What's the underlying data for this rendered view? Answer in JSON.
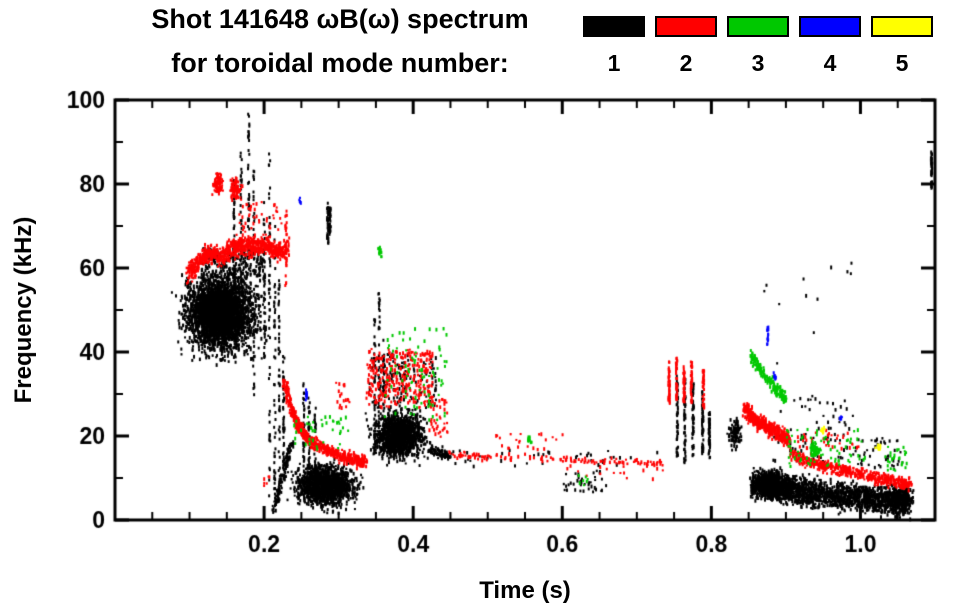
{
  "chart_data": {
    "type": "scatter",
    "title": "Shot 141648 ωB(ω) spectrum",
    "subtitle": "for toroidal mode number:",
    "xlabel": "Time (s)",
    "ylabel": "Frequency (kHz)",
    "xlim": [
      0.0,
      1.1
    ],
    "ylim": [
      0,
      100
    ],
    "xticks": [
      0.2,
      0.4,
      0.6,
      0.8,
      1.0
    ],
    "xtick_labels": [
      "0.2",
      "0.4",
      "0.6",
      "0.8",
      "1.0"
    ],
    "x_minor_step": 0.05,
    "yticks": [
      0,
      20,
      40,
      60,
      80,
      100
    ],
    "y_minor_step": 10,
    "grid": false,
    "legend_position": "top-right",
    "series": [
      {
        "name": "1",
        "color": "#000000",
        "clusters": [
          {
            "type": "box",
            "t": [
              0.075,
              0.205
            ],
            "f": [
              37,
              62
            ],
            "n": 2600,
            "gauss": true
          },
          {
            "type": "box",
            "t": [
              0.09,
              0.185
            ],
            "f": [
              42,
              58
            ],
            "n": 1200,
            "gauss": true
          },
          {
            "type": "box",
            "t": [
              0.115,
              0.2
            ],
            "f": [
              58,
              65
            ],
            "n": 220,
            "gauss": false
          },
          {
            "type": "vlines",
            "lines": [
              [
                0.158,
                60,
                82
              ],
              [
                0.168,
                56,
                88
              ],
              [
                0.178,
                60,
                97
              ],
              [
                0.185,
                30,
                84
              ],
              [
                0.199,
                38,
                78
              ]
            ],
            "n": 40
          },
          {
            "type": "vlines",
            "lines": [
              [
                0.206,
                6,
                88
              ],
              [
                0.213,
                4,
                72
              ],
              [
                0.219,
                4,
                58
              ],
              [
                0.225,
                10,
                40
              ]
            ],
            "n": 50
          },
          {
            "type": "path",
            "pts": [
              [
                0.212,
                3
              ],
              [
                0.236,
                19
              ]
            ],
            "jf": 1.2,
            "jt": 0.003,
            "n": 120
          },
          {
            "type": "box",
            "t": [
              0.225,
              0.335
            ],
            "f": [
              2,
              15
            ],
            "n": 1500,
            "gauss": true
          },
          {
            "type": "vlines",
            "lines": [
              [
                0.252,
                13,
                33
              ],
              [
                0.259,
                11,
                30
              ],
              [
                0.267,
                9,
                27
              ]
            ],
            "n": 30
          },
          {
            "type": "vlines",
            "lines": [
              [
                0.284,
                66,
                76
              ],
              [
                0.287,
                68,
                75
              ]
            ],
            "n": 35
          },
          {
            "type": "box",
            "t": [
              0.335,
              0.425
            ],
            "f": [
              13,
              28
            ],
            "n": 1400,
            "gauss": true
          },
          {
            "type": "box",
            "t": [
              0.34,
              0.43
            ],
            "f": [
              27,
              40
            ],
            "n": 150,
            "gauss": false
          },
          {
            "type": "vlines",
            "lines": [
              [
                0.347,
                16,
                50
              ],
              [
                0.353,
                20,
                55
              ],
              [
                0.359,
                18,
                44
              ]
            ],
            "n": 38
          },
          {
            "type": "path",
            "pts": [
              [
                0.42,
                17
              ],
              [
                0.448,
                15.5
              ]
            ],
            "jf": 1.2,
            "jt": 0.003,
            "n": 80
          },
          {
            "type": "box",
            "t": [
              0.448,
              0.73
            ],
            "f": [
              13,
              17
            ],
            "n": 40,
            "gauss": false
          },
          {
            "type": "box",
            "t": [
              0.6,
              0.66
            ],
            "f": [
              7,
              12
            ],
            "n": 40,
            "gauss": false
          },
          {
            "type": "vlines",
            "lines": [
              [
                0.753,
                15,
                35
              ],
              [
                0.763,
                14,
                34
              ],
              [
                0.774,
                15,
                33
              ],
              [
                0.787,
                16,
                31
              ],
              [
                0.796,
                15,
                26
              ]
            ],
            "n": 55
          },
          {
            "type": "box",
            "t": [
              0.818,
              0.845
            ],
            "f": [
              16,
              26
            ],
            "n": 100,
            "gauss": true
          },
          {
            "type": "path",
            "pts": [
              [
                0.855,
                9
              ],
              [
                0.88,
                8.5
              ],
              [
                0.91,
                7.5
              ],
              [
                0.95,
                6.5
              ],
              [
                1.0,
                5.5
              ],
              [
                1.04,
                5
              ],
              [
                1.065,
                5
              ]
            ],
            "jf": 3.2,
            "jt": 0.006,
            "n": 2400
          },
          {
            "type": "box",
            "t": [
              0.858,
              0.905
            ],
            "f": [
              4,
              13
            ],
            "n": 450,
            "gauss": true
          },
          {
            "type": "box",
            "t": [
              0.88,
              0.99
            ],
            "f": [
              14,
              30
            ],
            "n": 80,
            "gauss": false
          },
          {
            "type": "box",
            "t": [
              0.99,
              1.06
            ],
            "f": [
              12,
              20
            ],
            "n": 45,
            "gauss": false
          },
          {
            "type": "vlines",
            "lines": [
              [
                1.094,
                79,
                88
              ]
            ],
            "n": 40
          },
          {
            "type": "box",
            "t": [
              0.86,
              1.0
            ],
            "f": [
              32,
              62
            ],
            "n": 12,
            "gauss": false
          }
        ]
      },
      {
        "name": "2",
        "color": "#ff0000",
        "clusters": [
          {
            "type": "path",
            "pts": [
              [
                0.097,
                59
              ],
              [
                0.112,
                62
              ],
              [
                0.127,
                64
              ],
              [
                0.142,
                63
              ],
              [
                0.157,
                65
              ],
              [
                0.172,
                66
              ],
              [
                0.187,
                65
              ],
              [
                0.202,
                66
              ],
              [
                0.217,
                64
              ],
              [
                0.23,
                65
              ]
            ],
            "jf": 2.2,
            "jt": 0.004,
            "n": 800
          },
          {
            "type": "box",
            "t": [
              0.127,
              0.147
            ],
            "f": [
              77,
              84
            ],
            "n": 85,
            "gauss": true
          },
          {
            "type": "box",
            "t": [
              0.151,
              0.17
            ],
            "f": [
              75,
              83
            ],
            "n": 85,
            "gauss": true
          },
          {
            "type": "box",
            "t": [
              0.165,
              0.225
            ],
            "f": [
              68,
              76
            ],
            "n": 45,
            "gauss": false
          },
          {
            "type": "vlines",
            "lines": [
              [
                0.228,
                55,
                74
              ]
            ],
            "n": 30
          },
          {
            "type": "path",
            "pts": [
              [
                0.226,
                33
              ],
              [
                0.236,
                26.5
              ],
              [
                0.247,
                22
              ],
              [
                0.262,
                19
              ],
              [
                0.282,
                17
              ],
              [
                0.302,
                15.5
              ],
              [
                0.322,
                14.5
              ],
              [
                0.334,
                14.2
              ]
            ],
            "jf": 1.4,
            "jt": 0.003,
            "n": 600
          },
          {
            "type": "box",
            "t": [
              0.336,
              0.425
            ],
            "f": [
              27,
              41
            ],
            "n": 320,
            "gauss": false
          },
          {
            "type": "box",
            "t": [
              0.42,
              0.445
            ],
            "f": [
              20,
              30
            ],
            "n": 45,
            "gauss": false
          },
          {
            "type": "path",
            "pts": [
              [
                0.445,
                16
              ],
              [
                0.5,
                15.2
              ],
              [
                0.56,
                15
              ],
              [
                0.62,
                14.5
              ],
              [
                0.68,
                14.2
              ],
              [
                0.735,
                14
              ]
            ],
            "jf": 0.9,
            "jt": 0.004,
            "n": 130
          },
          {
            "type": "box",
            "t": [
              0.5,
              0.6
            ],
            "f": [
              17,
              21
            ],
            "n": 22,
            "gauss": false
          },
          {
            "type": "vlines",
            "lines": [
              [
                0.742,
                28,
                38
              ],
              [
                0.752,
                29,
                39
              ],
              [
                0.762,
                28,
                37
              ],
              [
                0.772,
                28,
                38
              ],
              [
                0.788,
                27,
                36
              ]
            ],
            "n": 42
          },
          {
            "type": "path",
            "pts": [
              [
                0.843,
                27
              ],
              [
                0.853,
                25
              ],
              [
                0.863,
                23.5
              ],
              [
                0.873,
                22.5
              ],
              [
                0.883,
                21.5
              ],
              [
                0.893,
                20.5
              ],
              [
                0.903,
                19.5
              ]
            ],
            "jf": 1.8,
            "jt": 0.003,
            "n": 450
          },
          {
            "type": "path",
            "pts": [
              [
                0.905,
                16
              ],
              [
                0.93,
                14.2
              ],
              [
                0.955,
                13
              ],
              [
                0.98,
                12
              ],
              [
                1.005,
                11
              ],
              [
                1.03,
                10
              ],
              [
                1.05,
                9.2
              ],
              [
                1.065,
                8.8
              ]
            ],
            "jf": 1.4,
            "jt": 0.004,
            "n": 500
          },
          {
            "type": "box",
            "t": [
              0.91,
              1.0
            ],
            "f": [
              17,
              22
            ],
            "n": 35,
            "gauss": false
          },
          {
            "type": "box",
            "t": [
              0.6,
              0.74
            ],
            "f": [
              10,
              14
            ],
            "n": 18,
            "gauss": false
          },
          {
            "type": "box",
            "t": [
              0.198,
              0.206
            ],
            "f": [
              8,
              11
            ],
            "n": 6,
            "gauss": false
          },
          {
            "type": "box",
            "t": [
              0.295,
              0.315
            ],
            "f": [
              27,
              33
            ],
            "n": 18,
            "gauss": false
          }
        ]
      },
      {
        "name": "3",
        "color": "#00c800",
        "clusters": [
          {
            "type": "box",
            "t": [
              0.238,
              0.315
            ],
            "f": [
              17,
              25
            ],
            "n": 40,
            "gauss": false
          },
          {
            "type": "box",
            "t": [
              0.35,
              0.358
            ],
            "f": [
              62,
              66
            ],
            "n": 16,
            "gauss": true
          },
          {
            "type": "box",
            "t": [
              0.36,
              0.445
            ],
            "f": [
              24,
              46
            ],
            "n": 85,
            "gauss": false
          },
          {
            "type": "box",
            "t": [
              0.548,
              0.56
            ],
            "f": [
              18,
              21
            ],
            "n": 12,
            "gauss": true
          },
          {
            "type": "path",
            "pts": [
              [
                0.851,
                40
              ],
              [
                0.86,
                37.5
              ],
              [
                0.87,
                35
              ],
              [
                0.88,
                32.5
              ],
              [
                0.89,
                30.5
              ],
              [
                0.898,
                29
              ]
            ],
            "jf": 1.4,
            "jt": 0.0025,
            "n": 190
          },
          {
            "type": "box",
            "t": [
              0.9,
              1.005
            ],
            "f": [
              13,
              22
            ],
            "n": 75,
            "gauss": false
          },
          {
            "type": "box",
            "t": [
              0.928,
              0.945
            ],
            "f": [
              15,
              19
            ],
            "n": 55,
            "gauss": true
          },
          {
            "type": "box",
            "t": [
              1.03,
              1.062
            ],
            "f": [
              12,
              18
            ],
            "n": 28,
            "gauss": false
          },
          {
            "type": "box",
            "t": [
              0.62,
              0.64
            ],
            "f": [
              8,
              11
            ],
            "n": 7,
            "gauss": false
          }
        ]
      },
      {
        "name": "4",
        "color": "#0000ff",
        "clusters": [
          {
            "type": "vlines",
            "lines": [
              [
                0.2555,
                28.5,
                31.5
              ]
            ],
            "n": 10
          },
          {
            "type": "box",
            "t": [
              0.243,
              0.249
            ],
            "f": [
              75,
              78
            ],
            "n": 5,
            "gauss": true
          },
          {
            "type": "vlines",
            "lines": [
              [
                0.8745,
                42,
                47
              ]
            ],
            "n": 14
          },
          {
            "type": "box",
            "t": [
              0.88,
              0.888
            ],
            "f": [
              33,
              36
            ],
            "n": 7,
            "gauss": true
          },
          {
            "type": "box",
            "t": [
              0.968,
              0.976
            ],
            "f": [
              23,
              26
            ],
            "n": 5,
            "gauss": true
          }
        ]
      },
      {
        "name": "5",
        "color": "#ffff00",
        "clusters": [
          {
            "type": "box",
            "t": [
              0.943,
              0.953
            ],
            "f": [
              20.5,
              23
            ],
            "n": 12,
            "gauss": true
          },
          {
            "type": "box",
            "t": [
              1.017,
              1.028
            ],
            "f": [
              16.5,
              19
            ],
            "n": 12,
            "gauss": true
          }
        ]
      }
    ]
  }
}
